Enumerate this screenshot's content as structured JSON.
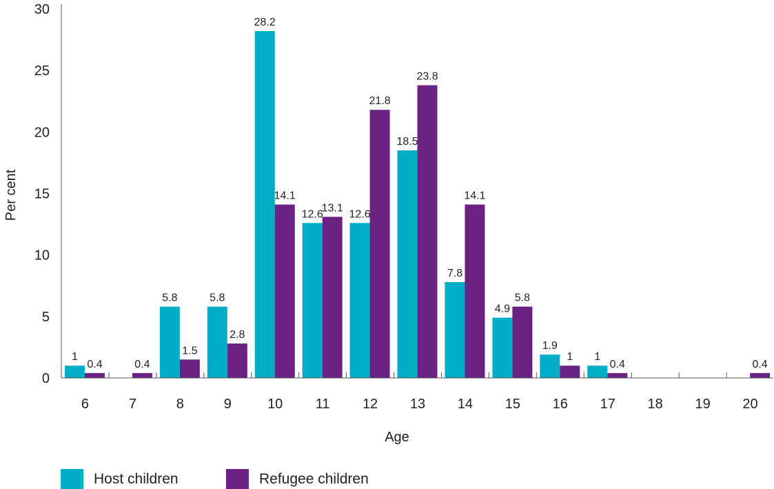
{
  "chart_data": {
    "type": "bar",
    "title": "",
    "xlabel": "Age",
    "ylabel": "Per cent",
    "ylim": [
      0,
      30
    ],
    "yticks": [
      "0",
      "5",
      "10",
      "15",
      "20",
      "25",
      "30"
    ],
    "categories": [
      "6",
      "7",
      "8",
      "9",
      "10",
      "11",
      "12",
      "13",
      "14",
      "15",
      "16",
      "17",
      "18",
      "19",
      "20"
    ],
    "series": [
      {
        "name": "Host children",
        "color": "#00adc6",
        "values": [
          1,
          null,
          5.8,
          5.8,
          28.2,
          12.6,
          12.6,
          18.5,
          7.8,
          4.9,
          1.9,
          1,
          null,
          null,
          null
        ],
        "labels": [
          "1",
          "",
          "5.8",
          "5.8",
          "28.2",
          "12.6",
          "12.6",
          "18.5",
          "7.8",
          "4.9",
          "1.9",
          "1",
          "",
          "",
          ""
        ]
      },
      {
        "name": "Refugee children",
        "color": "#6b2383",
        "values": [
          0.4,
          0.4,
          1.5,
          2.8,
          14.1,
          13.1,
          21.8,
          23.8,
          14.1,
          5.8,
          1,
          0.4,
          null,
          null,
          0.4
        ],
        "labels": [
          "0.4",
          "0.4",
          "1.5",
          "2.8",
          "14.1",
          "13.1",
          "21.8",
          "23.8",
          "14.1",
          "5.8",
          "1",
          "0.4",
          "",
          "",
          "0.4"
        ]
      }
    ],
    "grid": false,
    "legend_position": "bottom-left"
  }
}
